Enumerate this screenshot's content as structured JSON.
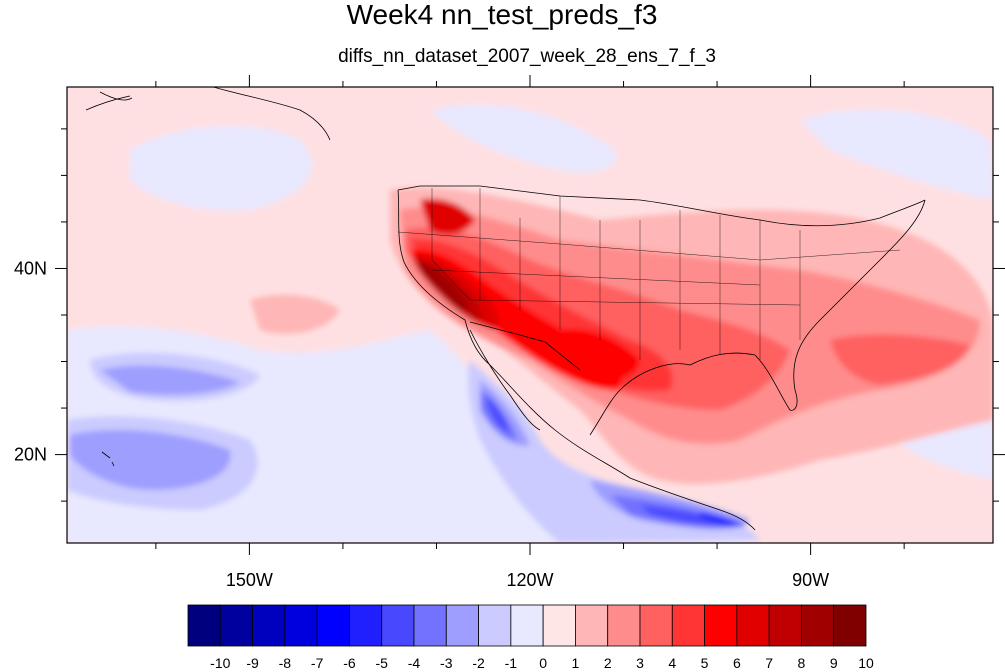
{
  "title": "Week4 nn_test_preds_f3",
  "subtitle": "diffs_nn_dataset_2007_week_28_ens_7_f_3",
  "map": {
    "lon_range": [
      -169.5,
      -70.5
    ],
    "lat_range": [
      10.5,
      59.5
    ],
    "x_ticks": [
      {
        "lon": -150,
        "label": "150W"
      },
      {
        "lon": -120,
        "label": "120W"
      },
      {
        "lon": -90,
        "label": "90W"
      }
    ],
    "y_ticks": [
      {
        "lat": 40,
        "label": "40N"
      },
      {
        "lat": 20,
        "label": "20N"
      }
    ],
    "background_color": "#ffe0e2"
  },
  "colorbar": {
    "labels": [
      "-10",
      "-9",
      "-8",
      "-7",
      "-6",
      "-5",
      "-4",
      "-3",
      "-2",
      "-1",
      "0",
      "1",
      "2",
      "3",
      "4",
      "5",
      "6",
      "7",
      "8",
      "9",
      "10"
    ],
    "colors": [
      "#00007f",
      "#00009f",
      "#0000bf",
      "#0000df",
      "#0000ff",
      "#2020ff",
      "#4848ff",
      "#7272ff",
      "#9e9eff",
      "#cbcbff",
      "#e8e8ff",
      "#ffe6e6",
      "#ffb6b6",
      "#ff8c8c",
      "#ff6060",
      "#ff3434",
      "#ff0000",
      "#e00000",
      "#c00000",
      "#a00000",
      "#800000"
    ]
  }
}
